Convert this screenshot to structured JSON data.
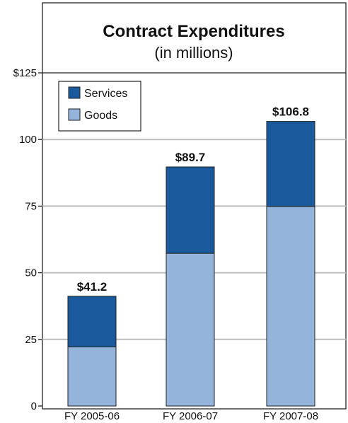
{
  "chart_data": {
    "type": "bar",
    "stacked": true,
    "title": "Contract Expenditures",
    "subtitle": "(in millions)",
    "categories": [
      "FY 2005-06",
      "FY 2006-07",
      "FY 2007-08"
    ],
    "series": [
      {
        "name": "Goods",
        "color": "#94b4dc",
        "values": [
          22.2,
          57.3,
          74.9
        ]
      },
      {
        "name": "Services",
        "color": "#1a5a9c",
        "values": [
          19.0,
          32.4,
          31.9
        ]
      }
    ],
    "totals": [
      41.2,
      89.7,
      106.8
    ],
    "total_labels": [
      "$41.2",
      "$89.7",
      "$106.8"
    ],
    "ylim": [
      0,
      125
    ],
    "y_ticks": [
      0,
      25,
      50,
      75,
      100,
      125
    ],
    "y_tick_labels": [
      "0",
      "25",
      "50",
      "75",
      "100",
      "$125"
    ],
    "grid": true,
    "legend": {
      "placement": "top-left",
      "order": [
        "Services",
        "Goods"
      ]
    }
  }
}
